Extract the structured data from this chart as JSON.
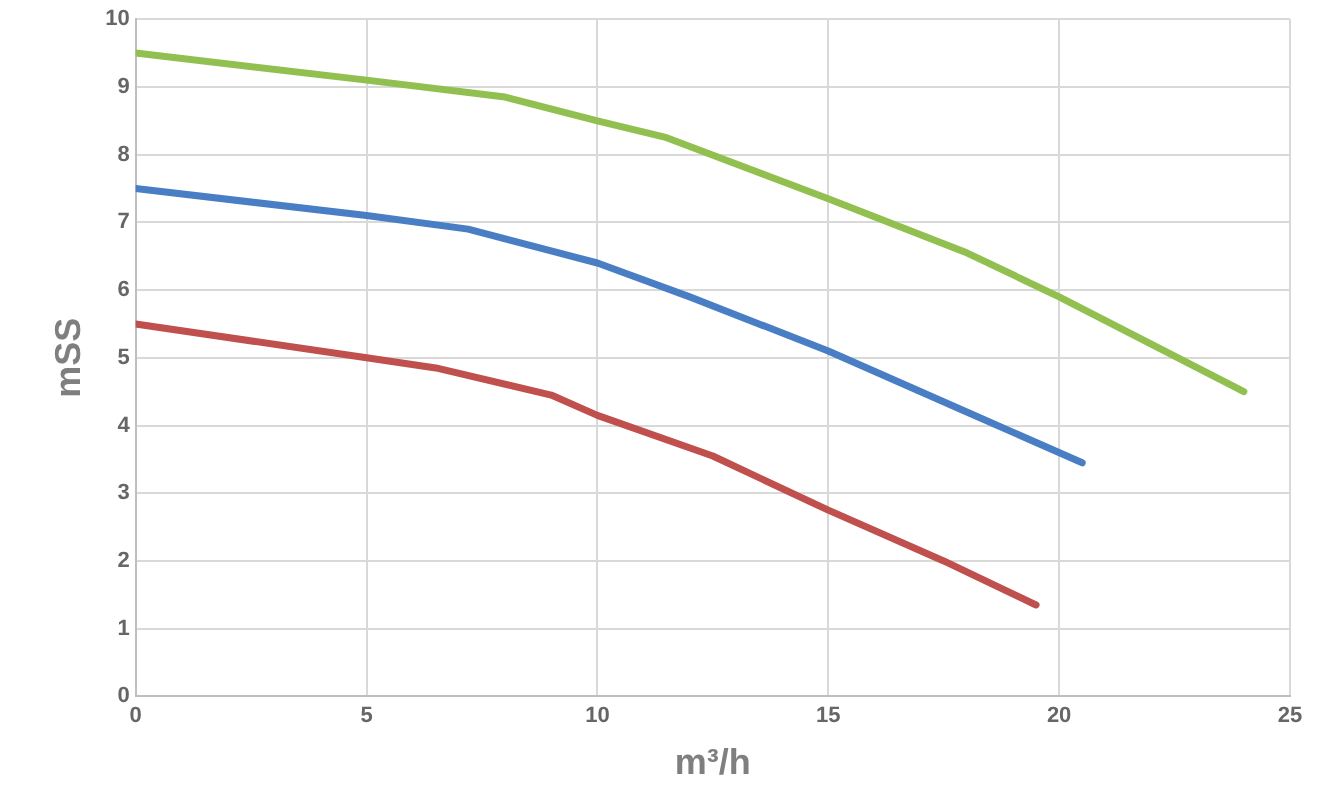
{
  "chart_data": {
    "type": "line",
    "xlabel": "m³/h",
    "ylabel": "mSS",
    "xlim": [
      0,
      25
    ],
    "xticks": [
      0,
      5,
      10,
      15,
      20,
      25
    ],
    "ylim": [
      0,
      10
    ],
    "yticks": [
      0,
      1,
      2,
      3,
      4,
      5,
      6,
      7,
      8,
      9,
      10
    ],
    "grid": true,
    "legend": false,
    "marker": "none",
    "line_style": "solid",
    "series": [
      {
        "color": "#92c050",
        "x": [
          0,
          5,
          8,
          10,
          11.5,
          15,
          18,
          20,
          24
        ],
        "values": [
          9.5,
          9.1,
          8.85,
          8.5,
          8.25,
          7.35,
          6.55,
          5.9,
          4.5
        ]
      },
      {
        "color": "#4a7ec4",
        "x": [
          0,
          5,
          7.2,
          10,
          12,
          15,
          18,
          20.5
        ],
        "values": [
          7.5,
          7.1,
          6.9,
          6.4,
          5.9,
          5.1,
          4.2,
          3.45
        ]
      },
      {
        "color": "#c0504d",
        "x": [
          0,
          5,
          6.5,
          9,
          10,
          12.5,
          15,
          17.5,
          19.5
        ],
        "values": [
          5.5,
          5.0,
          4.85,
          4.45,
          4.15,
          3.55,
          2.75,
          2.0,
          1.35
        ]
      }
    ]
  }
}
